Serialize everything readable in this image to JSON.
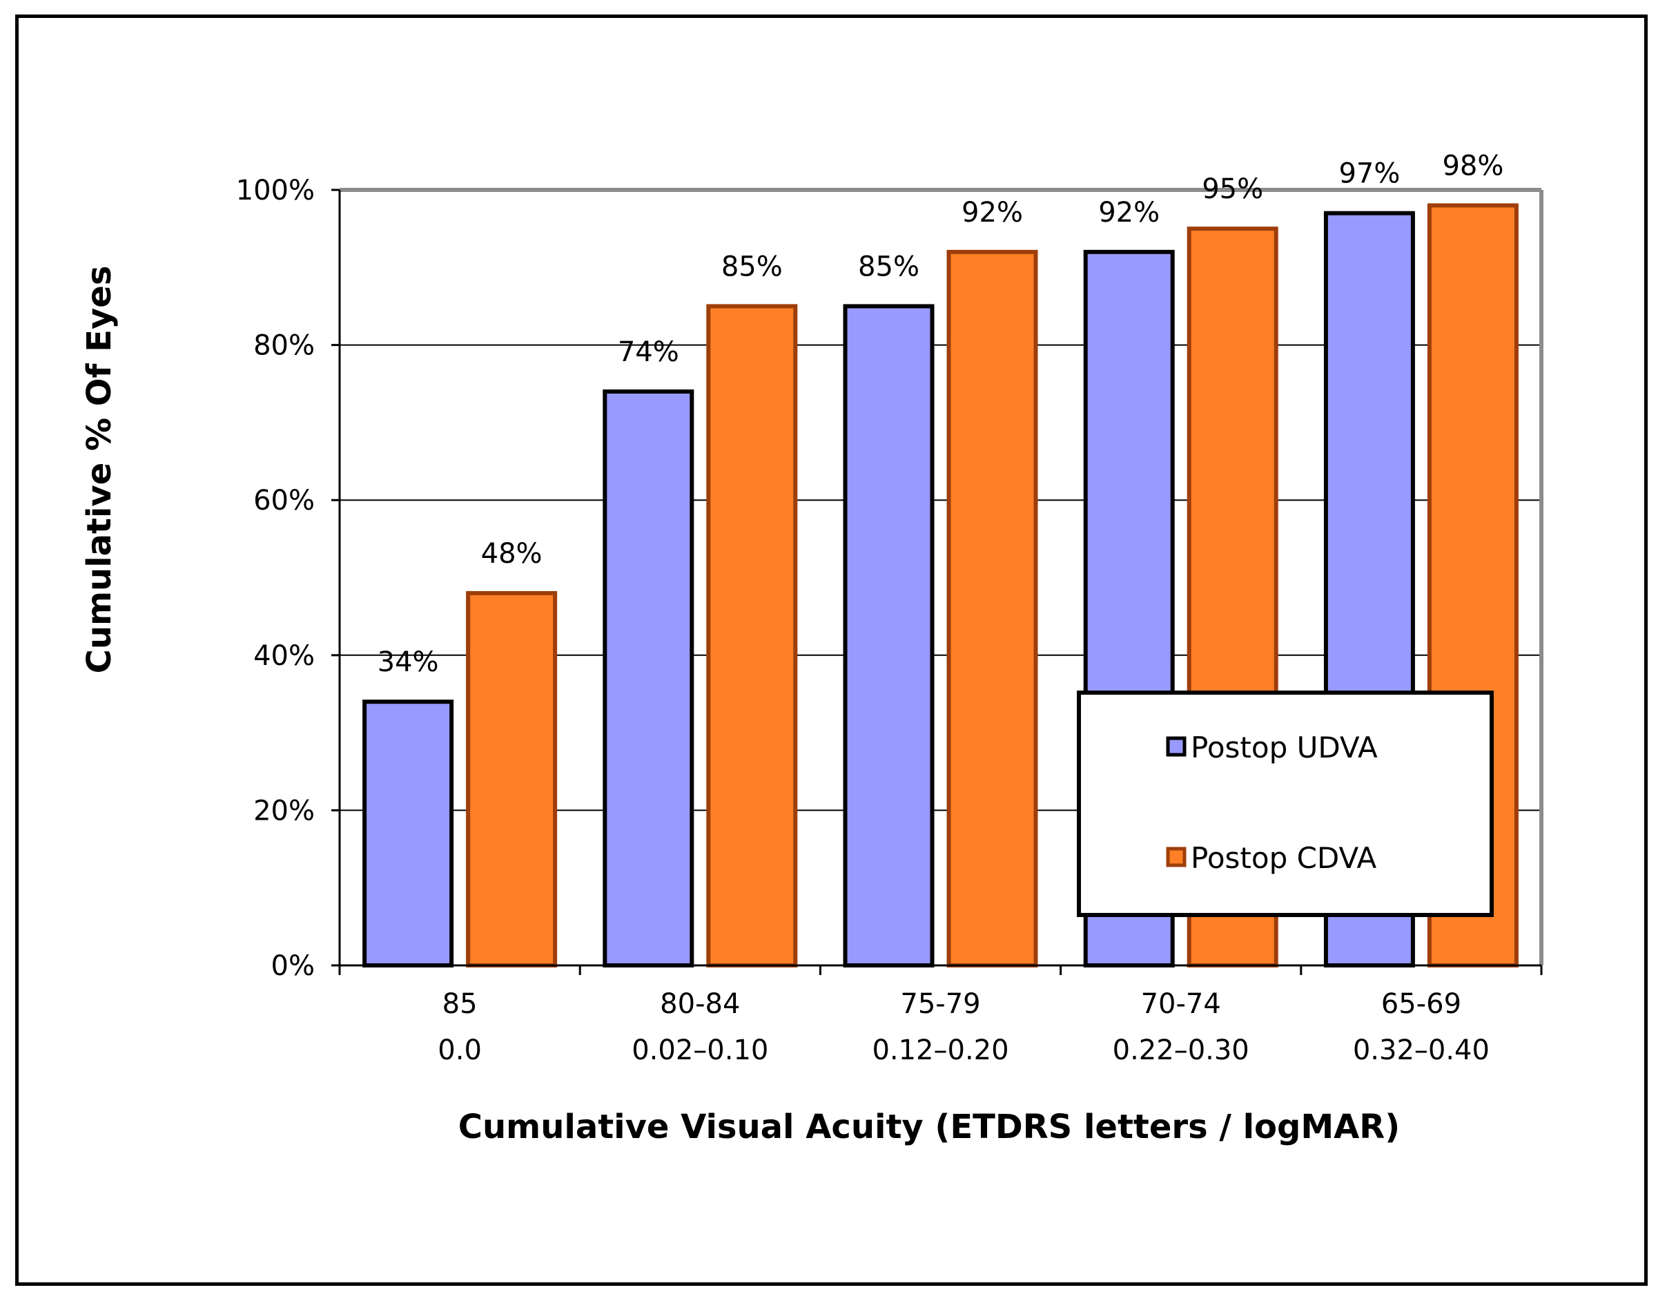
{
  "chart_data": {
    "type": "bar",
    "title": "",
    "xlabel": "Cumulative Visual Acuity (ETDRS letters / logMAR)",
    "ylabel": "Cumulative % Of Eyes",
    "ylim": [
      0,
      100
    ],
    "yticks": [
      "0%",
      "20%",
      "40%",
      "60%",
      "80%",
      "100%"
    ],
    "ytick_values": [
      0,
      20,
      40,
      60,
      80,
      100
    ],
    "grid": true,
    "legend_position": "lower-right",
    "categories": [
      {
        "letters": "85",
        "logmar": "0.0"
      },
      {
        "letters": "80-84",
        "logmar": "0.02–0.10"
      },
      {
        "letters": "75-79",
        "logmar": "0.12–0.20"
      },
      {
        "letters": "70-74",
        "logmar": "0.22–0.30"
      },
      {
        "letters": "65-69",
        "logmar": "0.32–0.40"
      }
    ],
    "series": [
      {
        "name": "Postop UDVA",
        "color": "#9999FF",
        "stroke": "#000000",
        "values": [
          34,
          74,
          85,
          92,
          97
        ],
        "labels": [
          "34%",
          "74%",
          "85%",
          "92%",
          "97%"
        ]
      },
      {
        "name": "Postop CDVA",
        "color": "#FF8026",
        "stroke": "#9E3E0A",
        "values": [
          48,
          85,
          92,
          95,
          98
        ],
        "labels": [
          "48%",
          "85%",
          "92%",
          "95%",
          "98%"
        ]
      }
    ]
  }
}
